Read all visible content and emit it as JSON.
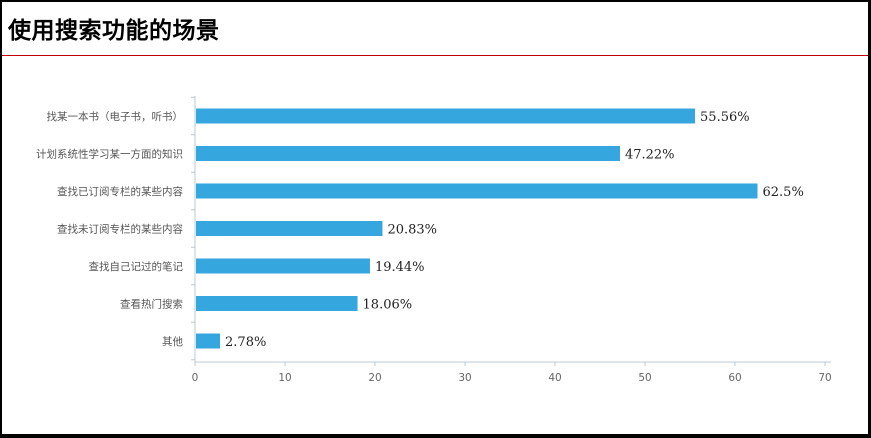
{
  "header": {
    "title": "使用搜索功能的场景"
  },
  "colors": {
    "bar": "#35a6de",
    "axis": "#b8c8d8",
    "rule": "#c00000"
  },
  "chart_data": {
    "type": "bar",
    "orientation": "horizontal",
    "title": "使用搜索功能的场景",
    "xlabel": "",
    "ylabel": "",
    "xlim": [
      0,
      70
    ],
    "ticks": [
      0,
      10,
      20,
      30,
      40,
      50,
      60,
      70
    ],
    "grid": false,
    "categories": [
      "找某一本书（电子书，听书）",
      "计划系统性学习某一方面的知识",
      "查找已订阅专栏的某些内容",
      "查找未订阅专栏的某些内容",
      "查找自己记过的笔记",
      "查看热门搜索",
      "其他"
    ],
    "values": [
      55.56,
      47.22,
      62.5,
      20.83,
      19.44,
      18.06,
      2.78
    ],
    "value_labels": [
      "55.56%",
      "47.22%",
      "62.5%",
      "20.83%",
      "19.44%",
      "18.06%",
      "2.78%"
    ]
  }
}
